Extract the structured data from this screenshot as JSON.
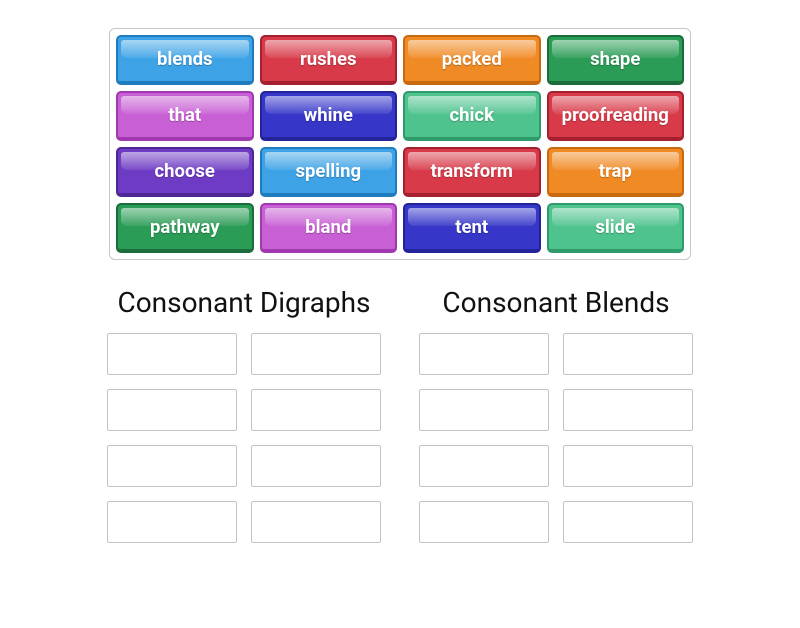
{
  "tile_colors": {
    "blue": {
      "bg": "#3ea3e6",
      "border": "#1f7bbf"
    },
    "red": {
      "bg": "#d83a49",
      "border": "#a5202e"
    },
    "orange": {
      "bg": "#f08a24",
      "border": "#c96a0e"
    },
    "green": {
      "bg": "#2a9c56",
      "border": "#1b6e3b"
    },
    "pink": {
      "bg": "#c85fd4",
      "border": "#a038ae"
    },
    "indigo": {
      "bg": "#3636c9",
      "border": "#23239a"
    },
    "mint": {
      "bg": "#4fc38e",
      "border": "#2f9b6a"
    },
    "purple": {
      "bg": "#6e3cc4",
      "border": "#4e2796"
    }
  },
  "word_bank": [
    {
      "label": "blends",
      "color": "blue"
    },
    {
      "label": "rushes",
      "color": "red"
    },
    {
      "label": "packed",
      "color": "orange"
    },
    {
      "label": "shape",
      "color": "green"
    },
    {
      "label": "that",
      "color": "pink"
    },
    {
      "label": "whine",
      "color": "indigo"
    },
    {
      "label": "chick",
      "color": "mint"
    },
    {
      "label": "proofreading",
      "color": "red"
    },
    {
      "label": "choose",
      "color": "purple"
    },
    {
      "label": "spelling",
      "color": "blue"
    },
    {
      "label": "transform",
      "color": "red"
    },
    {
      "label": "trap",
      "color": "orange"
    },
    {
      "label": "pathway",
      "color": "green"
    },
    {
      "label": "bland",
      "color": "pink"
    },
    {
      "label": "tent",
      "color": "indigo"
    },
    {
      "label": "slide",
      "color": "mint"
    }
  ],
  "categories": [
    {
      "title": "Consonant Digraphs",
      "slot_count": 8
    },
    {
      "title": "Consonant Blends",
      "slot_count": 8
    }
  ],
  "layout": {
    "tile_font_size": 18.5,
    "title_font_size": 28,
    "slot_border_color": "#c4c4c4",
    "bank_border_color": "#c8c8c8"
  }
}
